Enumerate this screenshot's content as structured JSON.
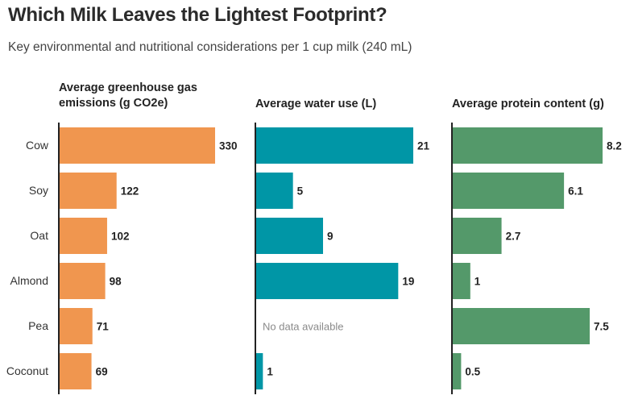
{
  "title": "Which Milk Leaves the Lightest Footprint?",
  "subtitle": "Key environmental and nutritional considerations per 1 cup milk (240 mL)",
  "chart_data": {
    "type": "bar",
    "orientation": "horizontal",
    "categories": [
      "Cow",
      "Soy",
      "Oat",
      "Almond",
      "Pea",
      "Coconut"
    ],
    "panels": [
      {
        "title_lines": [
          "Average greenhouse gas",
          "emissions (g CO2e)"
        ],
        "color": "#f0964f",
        "values": [
          330,
          122,
          102,
          98,
          71,
          69
        ],
        "value_labels": [
          "330",
          "122",
          "102",
          "98",
          "71",
          "69"
        ],
        "xlim": [
          0,
          330
        ]
      },
      {
        "title_lines": [
          "Average water use (L)"
        ],
        "color": "#0096a6",
        "values": [
          21,
          5,
          9,
          19,
          null,
          1
        ],
        "value_labels": [
          "21",
          "5",
          "9",
          "19",
          "",
          "1"
        ],
        "missing_label": "No data available",
        "xlim": [
          0,
          21
        ]
      },
      {
        "title_lines": [
          "Average protein content (g)"
        ],
        "color": "#54996a",
        "values": [
          8.2,
          6.1,
          2.7,
          1,
          7.5,
          0.5
        ],
        "value_labels": [
          "8.2",
          "6.1",
          "2.7",
          "1",
          "7.5",
          "0.5"
        ],
        "xlim": [
          0,
          8.2
        ]
      }
    ]
  }
}
